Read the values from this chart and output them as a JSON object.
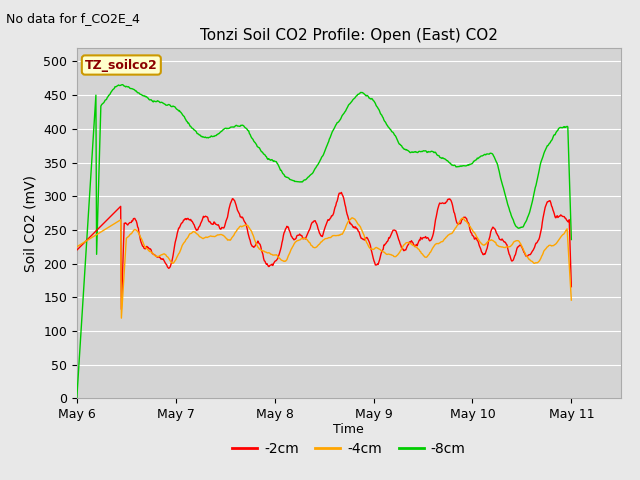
{
  "title": "Tonzi Soil CO2 Profile: Open (East) CO2",
  "subtitle": "No data for f_CO2E_4",
  "ylabel": "Soil CO2 (mV)",
  "xlabel": "Time",
  "ylim": [
    0,
    520
  ],
  "yticks": [
    0,
    50,
    100,
    150,
    200,
    250,
    300,
    350,
    400,
    450,
    500
  ],
  "xtick_labels": [
    "May 6",
    "May 7",
    "May 8",
    "May 9",
    "May 10",
    "May 11"
  ],
  "legend_labels": [
    "-2cm",
    "-4cm",
    "-8cm"
  ],
  "line_colors": [
    "#ff0000",
    "#ffa500",
    "#00cc00"
  ],
  "bg_color": "#e8e8e8",
  "plot_bg_color": "#d4d4d4",
  "annotation_text": "TZ_soilco2",
  "annotation_bg": "#ffffcc",
  "annotation_border": "#cc9900",
  "grid_color": "#ffffff",
  "n_points": 700,
  "xlim_max": 5.5
}
